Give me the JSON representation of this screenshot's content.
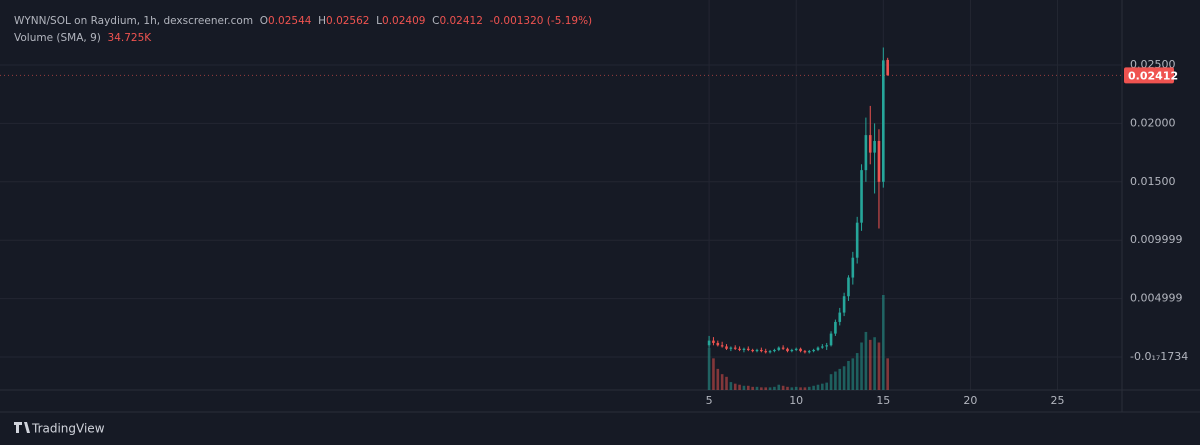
{
  "chart_data": {
    "type": "candlestick",
    "title": "WYNN/SOL on Raydium, 1h, dexscreener.com",
    "ohlc_labels": [
      "O",
      "H",
      "L",
      "C"
    ],
    "change": "-0.001320 (-5.19%)",
    "volume_label": "Volume (SMA, 9)",
    "volume_sma": "34.725K",
    "brand": "TradingView",
    "up_color": "#26a69a",
    "down_color": "#ef5350",
    "x": [
      5.0,
      5.25,
      5.5,
      5.75,
      6.0,
      6.25,
      6.5,
      6.75,
      7.0,
      7.25,
      7.5,
      7.75,
      8.0,
      8.25,
      8.5,
      8.75,
      9.0,
      9.25,
      9.5,
      9.75,
      10.0,
      10.25,
      10.5,
      10.75,
      11.0,
      11.25,
      11.5,
      11.75,
      12.0,
      12.25,
      12.5,
      12.75,
      13.0,
      13.25,
      13.5,
      13.75,
      14.0,
      14.25,
      14.5,
      14.75,
      15.0,
      15.25
    ],
    "open": [
      0.001,
      0.0014,
      0.0012,
      0.001,
      0.0009,
      0.0007,
      0.0008,
      0.0007,
      0.0006,
      0.0007,
      0.0006,
      0.0005,
      0.0006,
      0.0005,
      0.0004,
      0.0005,
      0.0006,
      0.0008,
      0.0007,
      0.0005,
      0.0006,
      0.0007,
      0.0005,
      0.0004,
      0.0005,
      0.0006,
      0.0008,
      0.0009,
      0.001,
      0.002,
      0.003,
      0.0038,
      0.0052,
      0.0068,
      0.0085,
      0.0115,
      0.016,
      0.019,
      0.0175,
      0.0185,
      0.015,
      0.02544
    ],
    "high": [
      0.0018,
      0.0017,
      0.0014,
      0.0013,
      0.0011,
      0.0009,
      0.001,
      0.0009,
      0.0008,
      0.0009,
      0.0007,
      0.0007,
      0.0008,
      0.0007,
      0.0006,
      0.0007,
      0.0009,
      0.001,
      0.0008,
      0.0007,
      0.0008,
      0.0008,
      0.0006,
      0.0006,
      0.0007,
      0.0009,
      0.0011,
      0.0012,
      0.0022,
      0.0032,
      0.0042,
      0.0055,
      0.007,
      0.009,
      0.012,
      0.0165,
      0.0205,
      0.0215,
      0.02,
      0.0195,
      0.0265,
      0.02562
    ],
    "low": [
      0.0008,
      0.001,
      0.0009,
      0.0008,
      0.0006,
      0.0005,
      0.0006,
      0.0005,
      0.0004,
      0.0005,
      0.0004,
      0.0004,
      0.0004,
      0.0003,
      0.0003,
      0.0004,
      0.0005,
      0.0006,
      0.0004,
      0.0004,
      0.0005,
      0.0004,
      0.0003,
      0.0003,
      0.0004,
      0.0005,
      0.0007,
      0.0006,
      0.0009,
      0.0018,
      0.0027,
      0.0035,
      0.0048,
      0.0062,
      0.008,
      0.0108,
      0.015,
      0.0165,
      0.014,
      0.011,
      0.0145,
      0.02409
    ],
    "close": [
      0.0014,
      0.0012,
      0.001,
      0.0009,
      0.0007,
      0.0008,
      0.0007,
      0.0006,
      0.0007,
      0.0006,
      0.0005,
      0.0006,
      0.0005,
      0.0004,
      0.0005,
      0.0006,
      0.0008,
      0.0007,
      0.0005,
      0.0006,
      0.0007,
      0.0005,
      0.0004,
      0.0005,
      0.0006,
      0.0008,
      0.0009,
      0.001,
      0.002,
      0.003,
      0.0038,
      0.0052,
      0.0068,
      0.0085,
      0.0115,
      0.016,
      0.019,
      0.0175,
      0.0185,
      0.015,
      0.0254,
      0.02412
    ],
    "volume": [
      80,
      60,
      40,
      30,
      25,
      15,
      12,
      10,
      8,
      8,
      6,
      6,
      5,
      5,
      5,
      6,
      10,
      8,
      6,
      5,
      6,
      5,
      5,
      6,
      8,
      10,
      12,
      14,
      30,
      35,
      40,
      45,
      55,
      60,
      70,
      90,
      110,
      95,
      100,
      90,
      180,
      60
    ],
    "xlim": [
      -35.7,
      28.7
    ],
    "xticks": [
      5,
      10,
      15,
      20,
      25
    ],
    "ylim": [
      -0.00283,
      0.03057
    ],
    "yticks": [
      {
        "value": 0.025,
        "label": "0.02500"
      },
      {
        "value": 0.02,
        "label": "0.02000"
      },
      {
        "value": 0.015,
        "label": "0.01500"
      },
      0.009999,
      0.004999,
      {
        "value": -1.734e-21,
        "label": "-0.0₁₇1734"
      }
    ],
    "grid": true
  }
}
